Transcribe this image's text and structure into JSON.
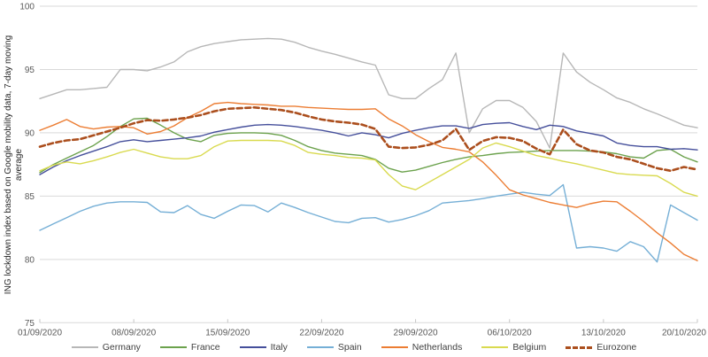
{
  "chart_data": {
    "type": "line",
    "title": "",
    "ylabel": "ING lockdown index based on Google mobility data, 7-day moving average",
    "x_axis": {
      "tick_labels": [
        "01/09/2020",
        "08/09/2020",
        "15/09/2020",
        "22/09/2020",
        "29/09/2020",
        "06/10/2020",
        "13/10/2020",
        "20/10/2020"
      ],
      "tick_interval_days": 7,
      "n_points": 50
    },
    "y_axis": {
      "min": 75,
      "max": 100,
      "ticks": [
        75,
        80,
        85,
        90,
        95,
        100
      ]
    },
    "grid": "horizontal",
    "legend_position": "bottom",
    "series": [
      {
        "name": "Germany",
        "color": "#b7b7b7",
        "dash": false,
        "width": 1.4,
        "values": [
          92.7,
          93.05,
          93.4,
          93.4,
          93.5,
          93.6,
          95.0,
          95.0,
          94.9,
          95.2,
          95.6,
          96.4,
          96.8,
          97.05,
          97.2,
          97.35,
          97.4,
          97.45,
          97.4,
          97.15,
          96.75,
          96.45,
          96.2,
          95.9,
          95.6,
          95.35,
          93.0,
          92.7,
          92.7,
          93.5,
          94.2,
          96.3,
          90.0,
          91.9,
          92.55,
          92.55,
          92.0,
          90.9,
          88.8,
          96.3,
          94.8,
          94.0,
          93.4,
          92.75,
          92.4,
          91.9,
          91.5,
          91.05,
          90.6,
          90.4
        ]
      },
      {
        "name": "France",
        "color": "#6ca24d",
        "dash": false,
        "width": 1.4,
        "values": [
          86.85,
          87.5,
          88.0,
          88.5,
          89.0,
          89.7,
          90.5,
          91.1,
          91.15,
          90.6,
          90.0,
          89.5,
          89.3,
          89.8,
          89.95,
          90.0,
          90.0,
          89.95,
          89.8,
          89.4,
          88.9,
          88.6,
          88.4,
          88.3,
          88.2,
          87.9,
          87.2,
          86.9,
          87.05,
          87.35,
          87.65,
          87.9,
          88.1,
          88.2,
          88.35,
          88.45,
          88.5,
          88.55,
          88.6,
          88.6,
          88.6,
          88.55,
          88.5,
          88.35,
          88.1,
          88.0,
          88.6,
          88.7,
          88.1,
          87.7
        ]
      },
      {
        "name": "Italy",
        "color": "#454f9b",
        "dash": false,
        "width": 1.4,
        "values": [
          86.7,
          87.3,
          87.8,
          88.2,
          88.55,
          88.9,
          89.3,
          89.45,
          89.3,
          89.4,
          89.5,
          89.6,
          89.75,
          90.05,
          90.25,
          90.45,
          90.6,
          90.65,
          90.6,
          90.5,
          90.35,
          90.2,
          90.0,
          89.75,
          90.0,
          89.85,
          89.6,
          89.95,
          90.2,
          90.4,
          90.55,
          90.55,
          90.35,
          90.65,
          90.75,
          90.8,
          90.5,
          90.25,
          90.6,
          90.5,
          90.15,
          89.95,
          89.75,
          89.2,
          89.0,
          88.9,
          88.9,
          88.7,
          88.75,
          88.65
        ]
      },
      {
        "name": "Spain",
        "color": "#75afd6",
        "dash": false,
        "width": 1.4,
        "values": [
          82.3,
          82.8,
          83.3,
          83.8,
          84.2,
          84.45,
          84.55,
          84.55,
          84.5,
          83.75,
          83.7,
          84.25,
          83.55,
          83.25,
          83.8,
          84.3,
          84.25,
          83.75,
          84.45,
          84.1,
          83.7,
          83.35,
          83.0,
          82.9,
          83.25,
          83.3,
          82.95,
          83.15,
          83.45,
          83.85,
          84.45,
          84.55,
          84.65,
          84.8,
          85.0,
          85.15,
          85.3,
          85.15,
          85.05,
          85.9,
          80.9,
          81.0,
          80.9,
          80.65,
          81.4,
          81.0,
          79.8,
          84.3,
          83.7,
          83.1
        ]
      },
      {
        "name": "Netherlands",
        "color": "#ec7d33",
        "dash": false,
        "width": 1.4,
        "values": [
          90.2,
          90.6,
          91.05,
          90.5,
          90.3,
          90.45,
          90.5,
          90.4,
          89.9,
          90.1,
          90.55,
          91.2,
          91.7,
          92.3,
          92.4,
          92.3,
          92.25,
          92.2,
          92.1,
          92.1,
          92.0,
          91.95,
          91.9,
          91.85,
          91.85,
          91.9,
          91.1,
          90.55,
          89.85,
          89.3,
          88.85,
          88.7,
          88.5,
          87.7,
          86.65,
          85.5,
          85.1,
          84.8,
          84.5,
          84.3,
          84.1,
          84.4,
          84.6,
          84.55,
          83.8,
          83.0,
          82.1,
          81.3,
          80.4,
          79.9
        ]
      },
      {
        "name": "Belgium",
        "color": "#d9da4f",
        "dash": false,
        "width": 1.4,
        "values": [
          87.0,
          87.45,
          87.7,
          87.55,
          87.8,
          88.1,
          88.45,
          88.7,
          88.4,
          88.1,
          87.95,
          87.95,
          88.2,
          88.9,
          89.35,
          89.4,
          89.4,
          89.4,
          89.35,
          89.0,
          88.45,
          88.3,
          88.2,
          88.05,
          88.0,
          87.85,
          86.7,
          85.8,
          85.5,
          86.1,
          86.7,
          87.3,
          87.9,
          88.8,
          89.2,
          88.9,
          88.55,
          88.2,
          88.0,
          87.75,
          87.55,
          87.3,
          87.05,
          86.8,
          86.7,
          86.65,
          86.6,
          86.0,
          85.3,
          85.0
        ]
      },
      {
        "name": "Eurozone",
        "color": "#ab4e1d",
        "dash": true,
        "width": 2.6,
        "values": [
          88.9,
          89.2,
          89.4,
          89.5,
          89.8,
          90.1,
          90.4,
          90.75,
          91.0,
          90.95,
          91.05,
          91.2,
          91.4,
          91.7,
          91.9,
          91.95,
          92.0,
          91.9,
          91.8,
          91.6,
          91.3,
          91.05,
          90.9,
          90.8,
          90.65,
          90.3,
          88.9,
          88.8,
          88.85,
          89.05,
          89.4,
          90.3,
          88.65,
          89.35,
          89.65,
          89.6,
          89.35,
          88.75,
          88.3,
          90.25,
          89.1,
          88.6,
          88.45,
          88.1,
          87.9,
          87.55,
          87.2,
          87.0,
          87.3,
          87.1
        ]
      }
    ],
    "style": {
      "grid_color": "#d9d9d9",
      "axis_color": "#c6c6c6",
      "tick_text_color": "#595959",
      "background": "#ffffff"
    }
  }
}
